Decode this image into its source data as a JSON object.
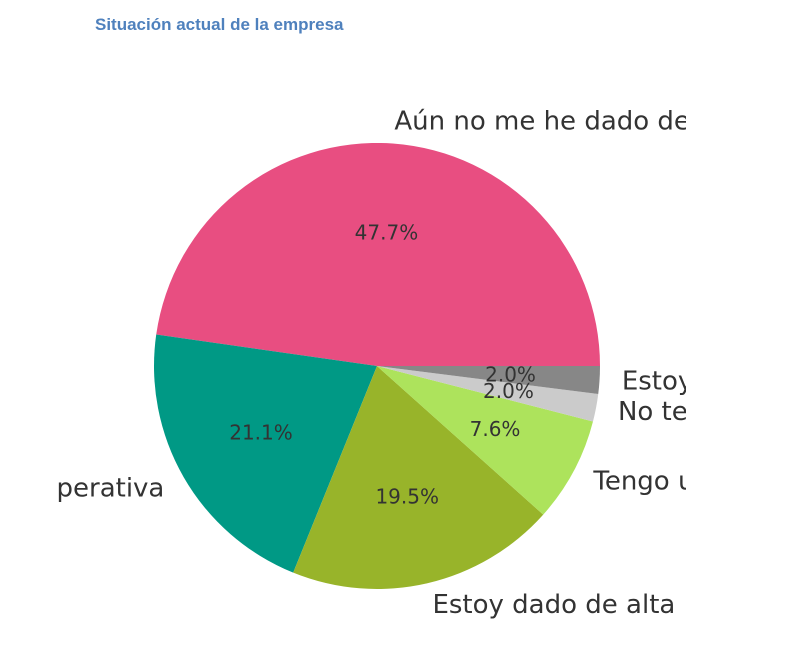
{
  "title": "Situación actual de la empresa",
  "chart_data": {
    "type": "pie",
    "title": "Situación actual de la empresa",
    "startangle": 0,
    "direction": "counterclockwise",
    "slices": [
      {
        "label": "Aún no me he dado de",
        "value": 47.7,
        "pct_label": "47.7%",
        "color": "#e84e81"
      },
      {
        "label": "perativa",
        "value": 21.1,
        "pct_label": "21.1%",
        "color": "#009985"
      },
      {
        "label": "Estoy dado de alta",
        "value": 19.5,
        "pct_label": "19.5%",
        "color": "#98b42a"
      },
      {
        "label": "Tengo u",
        "value": 7.6,
        "pct_label": "7.6%",
        "color": "#ade35c"
      },
      {
        "label": "No te",
        "value": 2.0,
        "pct_label": "2.0%",
        "color": "#cbcbcb"
      },
      {
        "label": "Estoy",
        "value": 2.0,
        "pct_label": "2.0%",
        "color": "#878787"
      }
    ]
  }
}
